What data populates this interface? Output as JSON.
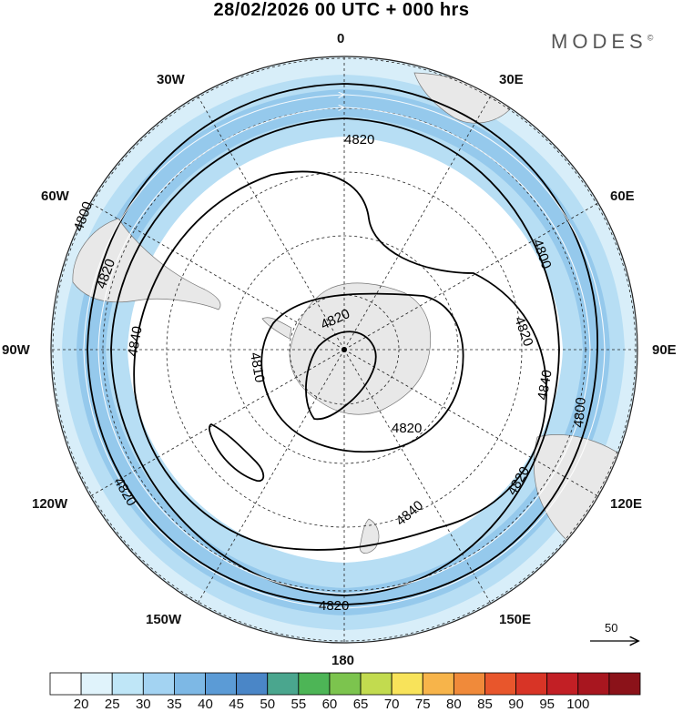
{
  "header": {
    "title": "28/02/2026  00 UTC  + 000 hrs",
    "brand": "MODES",
    "brand_mark": "©"
  },
  "map": {
    "projection": "south polar stereographic",
    "center_latitude": -90,
    "meridian_labels": [
      "0",
      "30E",
      "60E",
      "90E",
      "120E",
      "150E",
      "180",
      "150W",
      "120W",
      "90W",
      "60W",
      "30W"
    ],
    "contour_labels": [
      "4820",
      "4800",
      "4820",
      "4840",
      "4820",
      "4810",
      "4800",
      "4820",
      "4820",
      "4840",
      "4840",
      "4820",
      "4800",
      "4820",
      "4820"
    ],
    "wind_reference": {
      "value": "50"
    }
  },
  "colorbar": {
    "ticks": [
      "20",
      "25",
      "30",
      "35",
      "40",
      "45",
      "50",
      "55",
      "60",
      "65",
      "70",
      "75",
      "80",
      "85",
      "90",
      "95",
      "100"
    ],
    "colors": [
      "#ffffff",
      "#e0f3fb",
      "#bfe6f7",
      "#a3d3f2",
      "#7db8e5",
      "#5b9bd6",
      "#4a86c7",
      "#4aa68e",
      "#4db556",
      "#7cc44e",
      "#c2db4f",
      "#f8e35a",
      "#f7b44a",
      "#f08a3a",
      "#e8562c",
      "#d83426",
      "#c21f25",
      "#a8161f",
      "#8b1219"
    ]
  }
}
